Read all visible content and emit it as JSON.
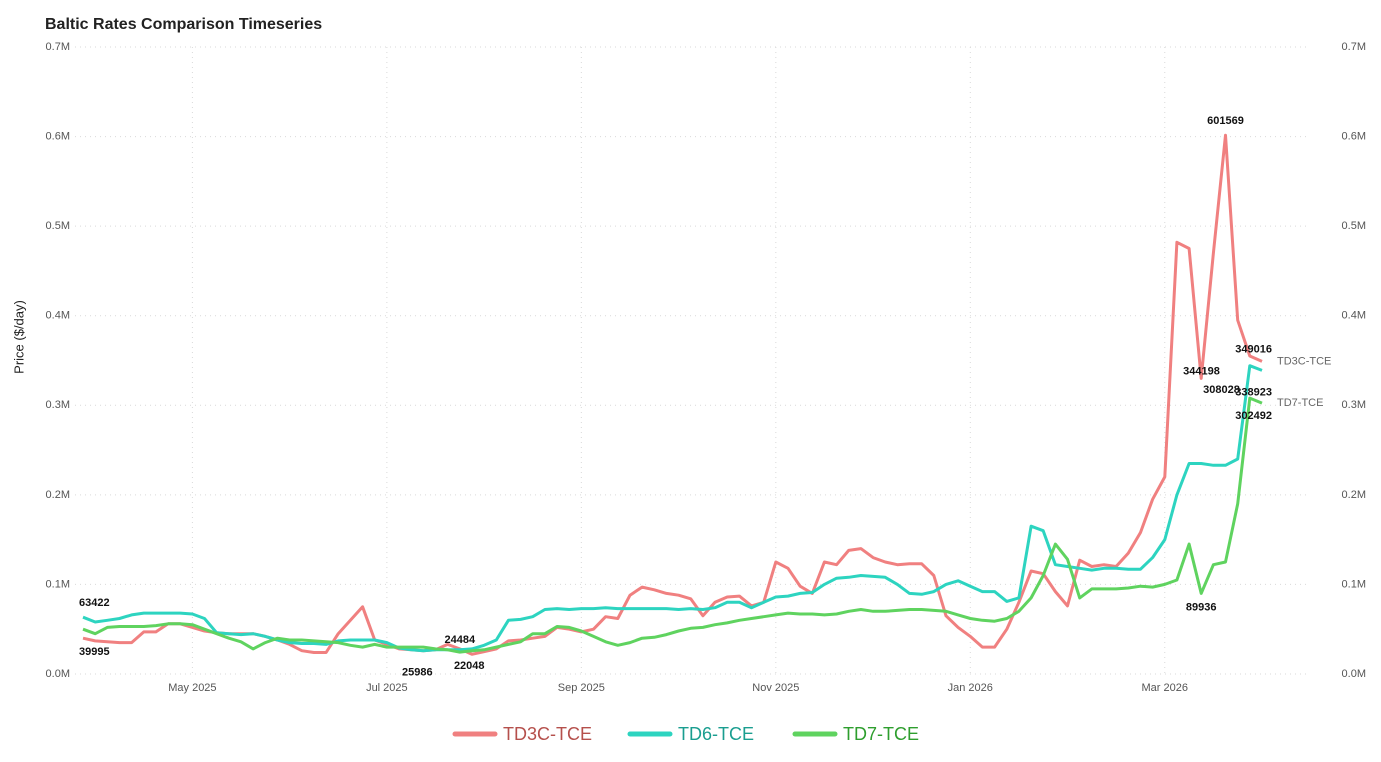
{
  "chart_data": {
    "type": "line",
    "title": "Baltic Rates Comparison Timeseries",
    "y_label": "Price ($/day)",
    "grid": true,
    "legend": "bottom",
    "categories": [
      null,
      null,
      null,
      null,
      null,
      null,
      null,
      null,
      null,
      "May 2025",
      null,
      null,
      null,
      null,
      null,
      null,
      null,
      null,
      null,
      null,
      null,
      null,
      null,
      null,
      null,
      "Jul 2025",
      null,
      null,
      null,
      null,
      null,
      null,
      null,
      null,
      null,
      null,
      null,
      null,
      null,
      null,
      null,
      "Sep 2025",
      null,
      null,
      null,
      null,
      null,
      null,
      null,
      null,
      null,
      null,
      null,
      null,
      null,
      null,
      null,
      "Nov 2025",
      null,
      null,
      null,
      null,
      null,
      null,
      null,
      null,
      null,
      null,
      null,
      null,
      null,
      null,
      null,
      "Jan 2026",
      null,
      null,
      null,
      null,
      null,
      null,
      null,
      null,
      null,
      null,
      null,
      null,
      null,
      null,
      null,
      "Mar 2026",
      null,
      null,
      null,
      null,
      null,
      null,
      null,
      null
    ],
    "ylim": [
      0,
      700000
    ],
    "yticks": [
      {
        "value": 0,
        "label": "0.0M"
      },
      {
        "value": 100000,
        "label": "0.1M"
      },
      {
        "value": 200000,
        "label": "0.2M"
      },
      {
        "value": 300000,
        "label": "0.3M"
      },
      {
        "value": 400000,
        "label": "0.4M"
      },
      {
        "value": 500000,
        "label": "0.5M"
      },
      {
        "value": 600000,
        "label": "0.6M"
      },
      {
        "value": 700000,
        "label": "0.7M"
      }
    ],
    "y2lim": [
      0,
      700000
    ],
    "y2ticks": [
      {
        "value": 0,
        "label": "0.0M"
      },
      {
        "value": 100000,
        "label": "0.1M"
      },
      {
        "value": 200000,
        "label": "0.2M"
      },
      {
        "value": 300000,
        "label": "0.3M"
      },
      {
        "value": 400000,
        "label": "0.4M"
      },
      {
        "value": 500000,
        "label": "0.5M"
      },
      {
        "value": 600000,
        "label": "0.6M"
      },
      {
        "value": 700000,
        "label": "0.7M"
      }
    ],
    "series": [
      {
        "name": "TD3C-TCE",
        "color": "#f08080",
        "legend_text_color": "#b5504c",
        "end_label": true,
        "labeled_points": [
          0,
          32,
          94,
          97
        ],
        "values": [
          39995,
          37000,
          36000,
          35000,
          35000,
          47000,
          47000,
          56000,
          56000,
          52000,
          48000,
          46000,
          45000,
          45000,
          45000,
          42000,
          38000,
          33000,
          26000,
          24000,
          24000,
          45000,
          60000,
          75000,
          38000,
          33000,
          28000,
          27000,
          26000,
          27000,
          33000,
          28000,
          22048,
          25000,
          28000,
          37000,
          38000,
          40000,
          42000,
          52000,
          50000,
          47000,
          50000,
          64000,
          62000,
          88000,
          97000,
          94000,
          90000,
          88000,
          84000,
          65000,
          80000,
          86000,
          87000,
          76000,
          80000,
          125000,
          118000,
          98000,
          90000,
          125000,
          122000,
          138000,
          140000,
          130000,
          125000,
          122000,
          123000,
          123000,
          110000,
          65000,
          52000,
          42000,
          30000,
          30000,
          50000,
          80000,
          115000,
          112000,
          92000,
          76000,
          127000,
          120000,
          122000,
          120000,
          135000,
          158000,
          195000,
          220000,
          482000,
          475000,
          330000,
          470000,
          601569,
          395000,
          355000,
          349016
        ]
      },
      {
        "name": "TD6-TCE",
        "color": "#2dd4c0",
        "legend_text_color": "#1a9e90",
        "end_label": false,
        "labeled_points": [
          0,
          28,
          96,
          97
        ],
        "values": [
          63422,
          58000,
          60000,
          62000,
          66000,
          68000,
          68000,
          68000,
          68000,
          67000,
          62000,
          46000,
          45000,
          44000,
          45000,
          42000,
          38000,
          35000,
          34000,
          34000,
          33000,
          37000,
          38000,
          38000,
          38000,
          35000,
          29000,
          27000,
          25986,
          27000,
          27000,
          27000,
          28000,
          32000,
          38000,
          60000,
          61000,
          64000,
          72000,
          73000,
          72000,
          73000,
          73000,
          74000,
          73000,
          73000,
          73000,
          73000,
          73000,
          72000,
          73000,
          72000,
          74000,
          80000,
          80000,
          74000,
          80000,
          86000,
          87000,
          90000,
          91000,
          100000,
          107000,
          108000,
          110000,
          109000,
          108000,
          100000,
          90000,
          89000,
          92000,
          100000,
          104000,
          98000,
          92000,
          92000,
          81000,
          85000,
          165000,
          160000,
          122000,
          120000,
          118000,
          116000,
          118000,
          118000,
          117000,
          117000,
          130000,
          150000,
          200000,
          235000,
          235000,
          233000,
          233000,
          240000,
          344198,
          338923
        ]
      },
      {
        "name": "TD7-TCE",
        "color": "#5fd35f",
        "legend_text_color": "#2e9e2e",
        "end_label": true,
        "labeled_points": [
          31,
          92,
          96,
          97
        ],
        "values": [
          50000,
          45000,
          52000,
          53000,
          53000,
          53000,
          54000,
          56000,
          56000,
          55000,
          50000,
          45000,
          40000,
          36000,
          28000,
          35000,
          40000,
          38000,
          38000,
          37000,
          36000,
          35000,
          32000,
          30000,
          33000,
          30000,
          30000,
          30000,
          30000,
          28000,
          27000,
          24484,
          26000,
          27000,
          30000,
          33000,
          36000,
          45000,
          45000,
          53000,
          52000,
          48000,
          42000,
          36000,
          32000,
          35000,
          40000,
          41000,
          44000,
          48000,
          51000,
          52000,
          55000,
          57000,
          60000,
          62000,
          64000,
          66000,
          68000,
          67000,
          67000,
          66000,
          67000,
          70000,
          72000,
          70000,
          70000,
          71000,
          72000,
          72000,
          71000,
          70000,
          66000,
          62000,
          60000,
          59000,
          62000,
          70000,
          85000,
          110000,
          145000,
          128000,
          85000,
          95000,
          95000,
          95000,
          96000,
          98000,
          97000,
          100000,
          105000,
          145000,
          89936,
          122000,
          125000,
          190000,
          308028,
          302492
        ]
      }
    ]
  }
}
